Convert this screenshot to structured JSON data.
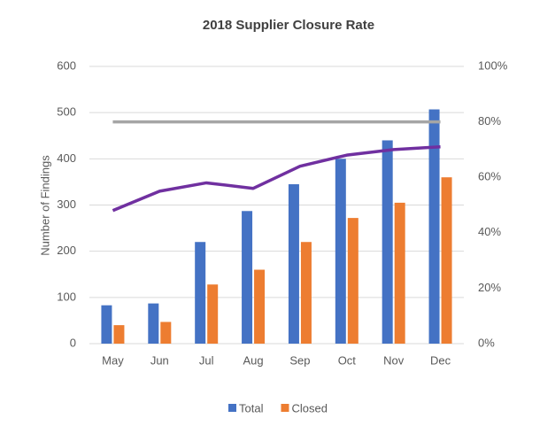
{
  "chart_data": {
    "type": "bar",
    "title": "2018 Supplier Closure Rate",
    "y_label": "Number of  Findings",
    "categories": [
      "May",
      "Jun",
      "Jul",
      "Aug",
      "Sep",
      "Oct",
      "Nov",
      "Dec"
    ],
    "series": [
      {
        "name": "Total",
        "color": "#4472c4",
        "values": [
          83,
          87,
          220,
          287,
          345,
          400,
          440,
          507
        ]
      },
      {
        "name": "Closed",
        "color": "#ed7d31",
        "values": [
          40,
          47,
          128,
          160,
          220,
          272,
          305,
          360
        ]
      },
      {
        "type": "line",
        "axis": "y2",
        "color": "#7030a0",
        "values": [
          48,
          55,
          58,
          56,
          64,
          68,
          70,
          71
        ]
      },
      {
        "type": "line",
        "axis": "y2",
        "color": "#a5a5a5",
        "values": [
          80,
          80,
          80,
          80,
          80,
          80,
          80,
          80
        ]
      }
    ],
    "ylim": [
      0,
      600
    ],
    "yticks": [
      0,
      100,
      200,
      300,
      400,
      500,
      600
    ],
    "y2lim": [
      0,
      100
    ],
    "y2ticks": [
      {
        "value": 0,
        "label": "0%"
      },
      {
        "value": 20,
        "label": "20%"
      },
      {
        "value": 40,
        "label": "40%"
      },
      {
        "value": 60,
        "label": "60%"
      },
      {
        "value": 80,
        "label": "80%"
      },
      {
        "value": 100,
        "label": "100%"
      }
    ],
    "grid": true,
    "legend": "bottom"
  }
}
